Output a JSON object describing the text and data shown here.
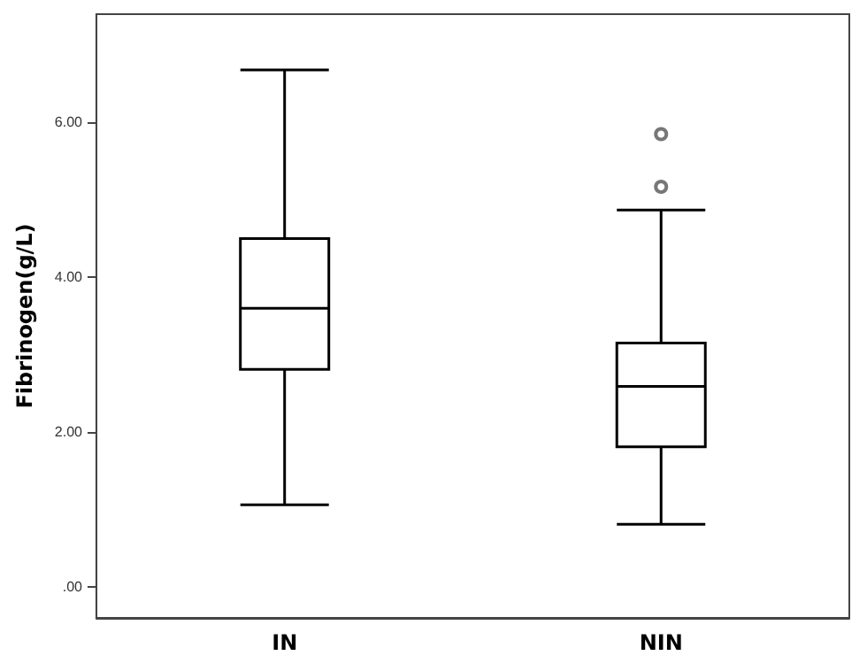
{
  "chart_data": {
    "type": "box",
    "ylabel": "Fibrinogen(g/L)",
    "categories": [
      "IN",
      "NIN"
    ],
    "boxes": [
      {
        "low": 1.06,
        "q1": 2.81,
        "median": 3.6,
        "q3": 4.5,
        "high": 6.68
      },
      {
        "low": 0.81,
        "q1": 1.81,
        "median": 2.59,
        "q3": 3.15,
        "high": 4.87,
        "outliers": [
          5.17,
          5.85
        ]
      }
    ],
    "ylim": [
      -0.4,
      7.4
    ],
    "yticks": [
      {
        "value": 0,
        "label": ".00"
      },
      {
        "value": 2,
        "label": "2.00"
      },
      {
        "value": 4,
        "label": "4.00"
      },
      {
        "value": 6,
        "label": "6.00"
      }
    ],
    "color": "#000000"
  }
}
